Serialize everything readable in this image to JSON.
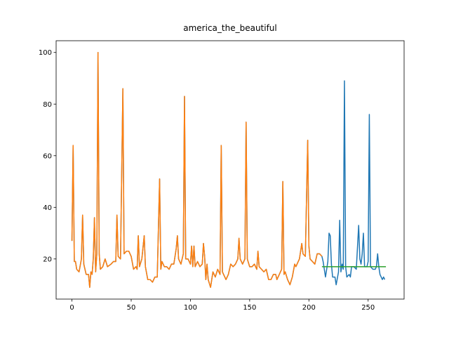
{
  "chart_data": {
    "type": "line",
    "title": "america_the_beautiful",
    "xlim": [
      -13.35,
      280.35
    ],
    "ylim": [
      4.45,
      104.55
    ],
    "xticks": [
      0,
      50,
      100,
      150,
      200,
      250
    ],
    "yticks": [
      20,
      40,
      60,
      80,
      100
    ],
    "series": [
      {
        "color": "#1f77b4",
        "x": [
          0,
          1,
          2,
          3,
          4,
          6,
          8,
          9,
          10,
          12,
          14,
          15,
          16,
          17,
          18,
          19,
          20,
          21,
          22,
          23,
          24,
          26,
          28,
          30,
          33,
          35,
          37,
          38,
          39,
          41,
          43,
          44,
          46,
          48,
          50,
          52,
          54,
          55,
          56,
          57,
          59,
          61,
          62,
          64,
          66,
          68,
          70,
          72,
          74,
          75,
          76,
          78,
          80,
          82,
          84,
          86,
          88,
          89,
          90,
          92,
          94,
          95,
          96,
          98,
          100,
          101,
          102,
          103,
          104,
          106,
          108,
          110,
          111,
          112,
          113,
          114,
          115,
          117,
          119,
          121,
          123,
          125,
          126,
          127,
          128,
          130,
          132,
          134,
          136,
          138,
          140,
          141,
          142,
          144,
          146,
          147,
          148,
          150,
          152,
          154,
          156,
          157,
          158,
          160,
          162,
          164,
          166,
          168,
          170,
          172,
          173,
          175,
          177,
          178,
          179,
          180,
          182,
          184,
          186,
          188,
          189,
          190,
          192,
          194,
          195,
          197,
          199,
          200,
          201,
          203,
          205,
          207,
          209,
          211,
          212,
          214,
          216,
          217,
          218,
          219,
          220,
          222,
          223,
          225,
          226,
          227,
          228,
          229,
          230,
          231,
          232,
          234,
          235,
          236,
          238,
          240,
          242,
          243,
          244,
          245,
          246,
          247,
          249,
          250,
          251,
          252,
          254,
          256,
          257,
          258,
          259,
          260,
          261,
          262,
          263,
          264
        ],
        "values": [
          27,
          64,
          19,
          19,
          16,
          15,
          20,
          37,
          18,
          14,
          14,
          9,
          15,
          14,
          20,
          36,
          15,
          22,
          100,
          22,
          16,
          17,
          20,
          17,
          18,
          19,
          19,
          37,
          21,
          20,
          86,
          22,
          23,
          23,
          21,
          16,
          17,
          16,
          29,
          17,
          20,
          29,
          17,
          12,
          12,
          11,
          13,
          13,
          51,
          16,
          19,
          17,
          17,
          16,
          18,
          18,
          24,
          29,
          20,
          18,
          22,
          83,
          20,
          20,
          18,
          25,
          17,
          25,
          17,
          19,
          17,
          18,
          26,
          21,
          12,
          18,
          12,
          9,
          15,
          13,
          16,
          14,
          64,
          15,
          14,
          12,
          14,
          18,
          17,
          18,
          20,
          28,
          20,
          18,
          20,
          73,
          20,
          17,
          17,
          18,
          16,
          23,
          17,
          16,
          15,
          16,
          12,
          12,
          14,
          14,
          12,
          14,
          16,
          50,
          14,
          15,
          12,
          10,
          13,
          18,
          17,
          18,
          20,
          26,
          22,
          21,
          66,
          25,
          20,
          19,
          18,
          22,
          22,
          21,
          19,
          13,
          19,
          30,
          29,
          18,
          13,
          13,
          10,
          15,
          35,
          15,
          18,
          16,
          89,
          17,
          13,
          14,
          13,
          17,
          17,
          16,
          33,
          20,
          18,
          22,
          30,
          17,
          17,
          19,
          76,
          17,
          16,
          16,
          17,
          22,
          17,
          14,
          13,
          12,
          13,
          12
        ]
      },
      {
        "color": "#ff7f0e",
        "x": [
          0,
          1,
          2,
          3,
          4,
          6,
          8,
          9,
          10,
          12,
          14,
          15,
          16,
          17,
          18,
          19,
          20,
          21,
          22,
          23,
          24,
          26,
          28,
          30,
          33,
          35,
          37,
          38,
          39,
          41,
          43,
          44,
          46,
          48,
          50,
          52,
          54,
          55,
          56,
          57,
          59,
          61,
          62,
          64,
          66,
          68,
          70,
          72,
          74,
          75,
          76,
          78,
          80,
          82,
          84,
          86,
          88,
          89,
          90,
          92,
          94,
          95,
          96,
          98,
          100,
          101,
          102,
          103,
          104,
          106,
          108,
          110,
          111,
          112,
          113,
          114,
          115,
          117,
          119,
          121,
          123,
          125,
          126,
          127,
          128,
          130,
          132,
          134,
          136,
          138,
          140,
          141,
          142,
          144,
          146,
          147,
          148,
          150,
          152,
          154,
          156,
          157,
          158,
          160,
          162,
          164,
          166,
          168,
          170,
          172,
          173,
          175,
          177,
          178,
          179,
          180,
          182,
          184,
          186,
          188,
          189,
          190,
          192,
          194,
          195,
          197,
          199,
          200,
          201,
          203,
          205,
          207,
          209,
          211
        ],
        "values": [
          27,
          64,
          19,
          19,
          16,
          15,
          20,
          37,
          18,
          14,
          14,
          9,
          15,
          14,
          20,
          36,
          15,
          22,
          100,
          22,
          16,
          17,
          20,
          17,
          18,
          19,
          19,
          37,
          21,
          20,
          86,
          22,
          23,
          23,
          21,
          16,
          17,
          16,
          29,
          17,
          20,
          29,
          17,
          12,
          12,
          11,
          13,
          13,
          51,
          16,
          19,
          17,
          17,
          16,
          18,
          18,
          24,
          29,
          20,
          18,
          22,
          83,
          20,
          20,
          18,
          25,
          17,
          25,
          17,
          19,
          17,
          18,
          26,
          21,
          12,
          18,
          12,
          9,
          15,
          13,
          16,
          14,
          64,
          15,
          14,
          12,
          14,
          18,
          17,
          18,
          20,
          28,
          20,
          18,
          20,
          73,
          20,
          17,
          17,
          18,
          16,
          23,
          17,
          16,
          15,
          16,
          12,
          12,
          14,
          14,
          12,
          14,
          16,
          50,
          14,
          15,
          12,
          10,
          13,
          18,
          17,
          18,
          20,
          26,
          22,
          21,
          66,
          25,
          20,
          19,
          18,
          22,
          22,
          21
        ]
      },
      {
        "color": "#2ca02c",
        "x": [
          211,
          265
        ],
        "values": [
          17,
          17
        ]
      }
    ]
  }
}
